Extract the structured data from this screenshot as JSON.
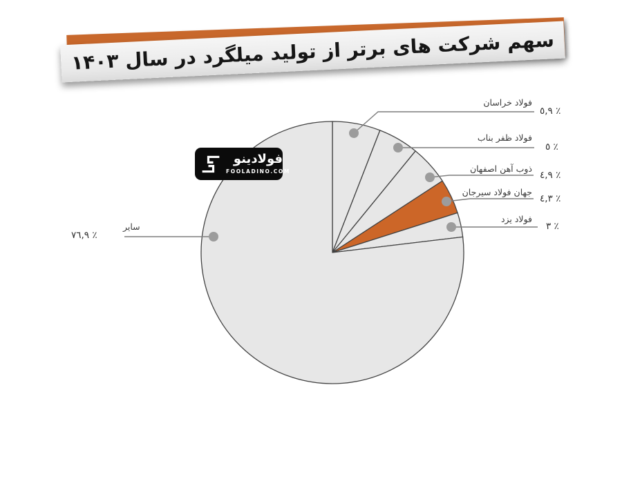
{
  "header": {
    "title": "سهم شرکت های برتر از تولید میلگرد در سال ۱۴۰۳"
  },
  "logo": {
    "brand": "فولادینو",
    "domain": "FOOLADINO.COM"
  },
  "colors": {
    "accent_orange": "#cc6628",
    "slice_gray": "#e7e7e7",
    "banner_orange": "#c8682c",
    "banner_gray": "#ececec",
    "outline": "#424242",
    "marker_gray": "#9c9c9c"
  },
  "chart_data": {
    "type": "pie",
    "title": "سهم شرکت های برتر از تولید میلگرد در سال ۱۴۰۳",
    "unit": "%",
    "start_angle_deg": -90,
    "direction": "clockwise",
    "stroke": "#424242",
    "legend_position": "callout-labels",
    "slices": [
      {
        "label": "فولاد خراسان",
        "value": 5.9,
        "display": "٥,٩ ٪",
        "color": "#e7e7e7"
      },
      {
        "label": "فولاد ظفر بناب",
        "value": 5,
        "display": "٥ ٪",
        "color": "#e7e7e7"
      },
      {
        "label": "ذوب آهن اصفهان",
        "value": 4.9,
        "display": "٤,٩ ٪",
        "color": "#e7e7e7"
      },
      {
        "label": "جهان فولاد سیرجان",
        "value": 4.3,
        "display": "٤,٣ ٪",
        "color": "#cc6628"
      },
      {
        "label": "فولاد یزد",
        "value": 3,
        "display": "٣ ٪",
        "color": "#e7e7e7"
      },
      {
        "label": "سایر",
        "value": 76.9,
        "display": "٧٦,٩ ٪",
        "color": "#e7e7e7"
      }
    ]
  }
}
